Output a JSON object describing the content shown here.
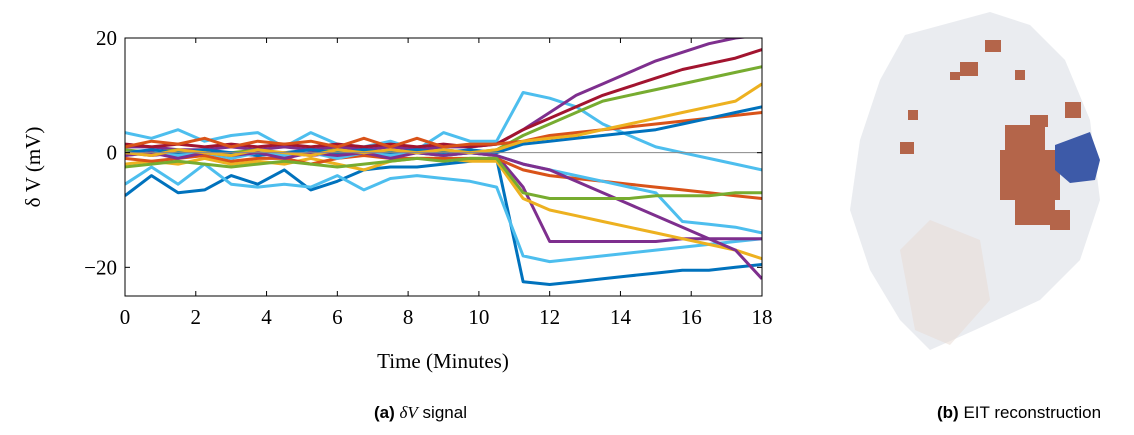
{
  "chart_data": {
    "type": "line",
    "xlabel": "Time (Minutes)",
    "ylabel": "δ V (mV)",
    "x": [
      0,
      0.75,
      1.5,
      2.25,
      3,
      3.75,
      4.5,
      5.25,
      6,
      6.75,
      7.5,
      8.25,
      9,
      9.75,
      10.5,
      11.25,
      12,
      12.75,
      13.5,
      14.25,
      15,
      15.75,
      16.5,
      17.25,
      18
    ],
    "xlim": [
      0,
      18
    ],
    "xticks": [
      0,
      2,
      4,
      6,
      8,
      10,
      12,
      14,
      16,
      18
    ],
    "ylim": [
      -25,
      20
    ],
    "yticks": [
      {
        "value": -20,
        "label": "−20"
      },
      0,
      20
    ],
    "grid": false,
    "series": [
      {
        "color": "#0072BD",
        "values": [
          -7.5,
          -4,
          -7,
          -6.5,
          -4,
          -5.5,
          -3,
          -6.5,
          -5,
          -3,
          -2.5,
          -2.5,
          -2,
          -1.5,
          -1,
          -22.5,
          -23,
          -22.5,
          -22,
          -21.5,
          -21,
          -20.5,
          -20.5,
          -20,
          -19.5
        ]
      },
      {
        "color": "#4DBEEE",
        "values": [
          3.5,
          2.5,
          4,
          2,
          3,
          3.5,
          1,
          3.5,
          1.5,
          1,
          2,
          0.5,
          3.5,
          2,
          2,
          10.5,
          9.5,
          8,
          5,
          3,
          1,
          0,
          -1,
          -2,
          -3
        ]
      },
      {
        "color": "#4DBEEE",
        "values": [
          -5.5,
          -2.5,
          -5.5,
          -2,
          -5.5,
          -6,
          -5.5,
          -6,
          -4,
          -6.5,
          -4.5,
          -4,
          -4.5,
          -5,
          -6,
          -18,
          -19,
          -18.5,
          -18,
          -17.5,
          -17,
          -16.5,
          -16,
          -15.5,
          -15
        ]
      },
      {
        "color": "#7E2F8E",
        "values": [
          1,
          1,
          0.5,
          0.5,
          1,
          0.5,
          1,
          0.5,
          1,
          0.5,
          1,
          0.5,
          1,
          1,
          1.5,
          4,
          7,
          10,
          12,
          14,
          16,
          17.5,
          19,
          20,
          20.5
        ]
      },
      {
        "color": "#7E2F8E",
        "values": [
          0,
          -0.5,
          0,
          -0.5,
          0,
          -0.5,
          0,
          -0.5,
          0,
          0,
          -0.5,
          0,
          -0.5,
          0,
          -0.5,
          -6,
          -15.5,
          -15.5,
          -15.5,
          -15.5,
          -15.5,
          -15,
          -15,
          -15,
          -15
        ]
      },
      {
        "color": "#EDB120",
        "values": [
          -2,
          -1.5,
          -2,
          -1,
          -2,
          -1.5,
          -2,
          -1,
          -2,
          -3,
          -1.5,
          -1,
          -1,
          -1.5,
          -1.5,
          -8,
          -10,
          -11,
          -12,
          -13,
          -14,
          -15,
          -16,
          -17,
          -18.5
        ]
      },
      {
        "color": "#A2142F",
        "values": [
          1.5,
          1,
          1.5,
          1,
          1.5,
          1,
          1.5,
          1,
          1.5,
          1,
          1.5,
          1,
          1.5,
          1,
          1.5,
          4,
          6,
          8,
          10,
          11.5,
          13,
          14.5,
          15.5,
          16.5,
          18
        ]
      },
      {
        "color": "#77AC30",
        "values": [
          0.5,
          0,
          0.5,
          -0.5,
          0,
          0.5,
          -0.5,
          0,
          0.5,
          0,
          -0.5,
          0,
          0.5,
          0,
          0.5,
          3,
          5,
          7,
          9,
          10,
          11,
          12,
          13,
          14,
          15
        ]
      },
      {
        "color": "#D95319",
        "values": [
          1,
          2,
          1.5,
          2.5,
          1,
          2,
          1.5,
          2,
          1,
          2.5,
          1,
          2.5,
          1,
          1.5,
          1.5,
          2,
          3,
          3.5,
          4,
          4.5,
          5,
          5.5,
          6,
          6.5,
          7
        ]
      },
      {
        "color": "#D95319",
        "values": [
          -1,
          -1.5,
          -1,
          -0.5,
          -1.5,
          -1,
          -1,
          -2,
          -1,
          -0.5,
          -1,
          -1,
          -1,
          -1,
          -1,
          -3,
          -4,
          -4.5,
          -5,
          -5.5,
          -6,
          -6.5,
          -7,
          -7.5,
          -8
        ]
      },
      {
        "color": "#0072BD",
        "values": [
          0,
          0.5,
          0,
          0.5,
          0,
          -0.5,
          0,
          0.5,
          0,
          0.5,
          0,
          0.5,
          0,
          0.5,
          0,
          1.5,
          2,
          2.5,
          3,
          3.5,
          4,
          5,
          6,
          7,
          8
        ]
      },
      {
        "color": "#4DBEEE",
        "values": [
          -0.5,
          0,
          -0.5,
          0,
          -1,
          0,
          -0.5,
          0,
          -1,
          0,
          -0.5,
          0,
          -0.5,
          0,
          -0.5,
          -2,
          -3,
          -4,
          -5,
          -6,
          -7,
          -12,
          -12.5,
          -13,
          -14
        ]
      },
      {
        "color": "#7E2F8E",
        "values": [
          -0.5,
          0,
          -1,
          0,
          -0.5,
          0,
          -1,
          0,
          -0.5,
          0,
          -1,
          0,
          -0.5,
          0,
          -0.5,
          -2,
          -3,
          -5,
          -7,
          -9,
          -11,
          -13,
          -15,
          -17,
          -22
        ]
      },
      {
        "color": "#77AC30",
        "values": [
          -2.5,
          -2,
          -1.5,
          -2,
          -2.5,
          -2,
          -1.5,
          -2,
          -2.5,
          -2,
          -1.5,
          -1,
          -1.5,
          -1,
          -1,
          -7,
          -8,
          -8,
          -8,
          -8,
          -7.5,
          -7.5,
          -7.5,
          -7,
          -7
        ]
      },
      {
        "color": "#EDB120",
        "values": [
          0,
          -0.5,
          0.5,
          0,
          -0.5,
          0.5,
          0,
          -0.5,
          0.5,
          0,
          0.5,
          0,
          0.5,
          0,
          0.5,
          2,
          2.5,
          3,
          4,
          5,
          6,
          7,
          8,
          9,
          12
        ]
      }
    ]
  },
  "captions": [
    {
      "label": "(a)",
      "math": "δV",
      "text": "signal"
    },
    {
      "label": "(b)",
      "text": "EIT reconstruction"
    }
  ]
}
